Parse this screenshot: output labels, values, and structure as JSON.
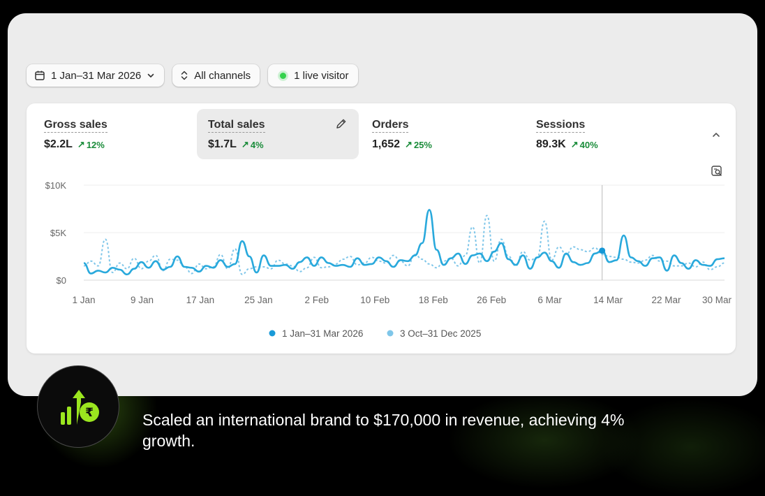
{
  "toolbar": {
    "date_range": "1 Jan–31 Mar 2026",
    "channels": "All channels",
    "live_visitors": "1 live visitor"
  },
  "metrics": [
    {
      "label": "Gross sales",
      "value": "$2.2L",
      "delta": "12%"
    },
    {
      "label": "Total sales",
      "value": "$1.7L",
      "delta": "4%"
    },
    {
      "label": "Orders",
      "value": "1,652",
      "delta": "25%"
    },
    {
      "label": "Sessions",
      "value": "89.3K",
      "delta": "40%"
    }
  ],
  "icons": {
    "calendar": "calendar-icon",
    "sort": "sort-icon",
    "status": "live-status-dot",
    "edit": "pencil-icon",
    "collapse": "chevron-up-icon",
    "zoom": "chart-zoom-icon",
    "trend": "arrow-up-right-icon",
    "badge": "rupee-growth-icon"
  },
  "colors": {
    "current_series": "#29a9dc",
    "previous_series": "#7fc6e9",
    "delta_positive": "#1a8c3a",
    "live": "#34d24c",
    "badge_accent": "#9be61f"
  },
  "chart_data": {
    "type": "line",
    "y_ticks": [
      "$10K",
      "$5K",
      "$0"
    ],
    "ylim": [
      0,
      10000
    ],
    "x_ticks": [
      "1 Jan",
      "9 Jan",
      "17 Jan",
      "25 Jan",
      "2 Feb",
      "10 Feb",
      "18 Feb",
      "26 Feb",
      "6 Mar",
      "14 Mar",
      "22 Mar",
      "30 Mar"
    ],
    "grid": true,
    "legend_position": "bottom",
    "hover_day": 72,
    "series": [
      {
        "name": "1 Jan–31 Mar 2026",
        "style": "solid",
        "values": [
          1800,
          700,
          1000,
          800,
          1300,
          1100,
          600,
          1200,
          1900,
          1300,
          2000,
          1100,
          1400,
          2500,
          1400,
          1300,
          900,
          1500,
          1300,
          2100,
          1400,
          1700,
          4100,
          2500,
          800,
          2600,
          1500,
          1500,
          1600,
          1200,
          1900,
          2400,
          1500,
          2400,
          1800,
          1500,
          1600,
          1400,
          2300,
          1600,
          1700,
          2400,
          2000,
          1400,
          2100,
          2000,
          2600,
          3900,
          7400,
          3200,
          1600,
          2300,
          2800,
          1700,
          2600,
          2800,
          2000,
          3000,
          3900,
          2200,
          1600,
          2600,
          1200,
          2400,
          2900,
          2000,
          1300,
          2800,
          1900,
          1600,
          1800,
          2800,
          3100,
          1900,
          2100,
          4700,
          2400,
          2000,
          1500,
          2300,
          2400,
          1000,
          2600,
          1800,
          1200,
          2100,
          1600,
          1500,
          2200,
          2300
        ]
      },
      {
        "name": "3 Oct–31 Dec 2025",
        "style": "dashed",
        "values": [
          1500,
          2000,
          1500,
          4300,
          800,
          1800,
          1200,
          2300,
          1200,
          2000,
          2600,
          1000,
          2200,
          2100,
          1400,
          700,
          1700,
          1200,
          1400,
          2700,
          1200,
          3300,
          600,
          1200,
          1400,
          1400,
          1200,
          2100,
          1700,
          1500,
          900,
          1300,
          2400,
          1300,
          1400,
          1700,
          2200,
          2500,
          1600,
          1800,
          2400,
          2000,
          1800,
          2600,
          2000,
          1500,
          2700,
          2200,
          1700,
          1300,
          2000,
          2300,
          1500,
          2600,
          5600,
          1800,
          6800,
          2000,
          4300,
          2500,
          1500,
          3000,
          2100,
          2400,
          6200,
          2100,
          3500,
          2700,
          3500,
          3200,
          3000,
          3400,
          2700,
          2500,
          2400,
          2200,
          1900,
          1800,
          2100,
          2600,
          2000,
          2000,
          1500,
          1500,
          1800,
          1400,
          1900,
          1100,
          1400,
          1800
        ]
      }
    ]
  },
  "tagline": "Scaled an international brand to $170,000 in revenue, achieving 4% growth."
}
